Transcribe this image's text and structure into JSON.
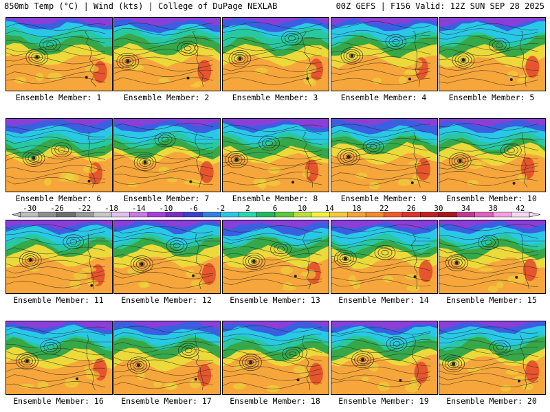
{
  "header": {
    "left": "850mb Temp (°C) | Wind (kts) | College of DuPage NEXLAB",
    "right": "00Z GEFS | F156 Valid: 12Z SUN SEP 28 2025"
  },
  "caption_prefix": "Ensemble Member: ",
  "members": [
    1,
    2,
    3,
    4,
    5,
    6,
    7,
    8,
    9,
    10,
    11,
    12,
    13,
    14,
    15,
    16,
    17,
    18,
    19,
    20
  ],
  "colorbar": {
    "ticks": [
      "-30",
      "-26",
      "-22",
      "-18",
      "-14",
      "-10",
      "-6",
      "-2",
      "2",
      "6",
      "10",
      "14",
      "18",
      "22",
      "26",
      "30",
      "34",
      "38",
      "42"
    ],
    "colors": [
      "#bdbdbd",
      "#8e8e8e",
      "#6e6e6e",
      "#9a9a9a",
      "#c7c7c7",
      "#e0c0f0",
      "#c77be0",
      "#a63fd6",
      "#7a2ec0",
      "#3b3fd0",
      "#2f7fe6",
      "#28c7e6",
      "#27d6b0",
      "#22b860",
      "#5cc83a",
      "#b8e03a",
      "#f2f23a",
      "#f7c83a",
      "#f5a336",
      "#f28a2e",
      "#ef5a2a",
      "#e2302a",
      "#c21f22",
      "#a8161c",
      "#c23a8f",
      "#e060c0",
      "#f2a0e0",
      "#f6d6f2"
    ],
    "range": [
      -30,
      42
    ]
  },
  "palette": {
    "purple": "#8a3fd8",
    "blue": "#3a5fe0",
    "cyan": "#29c8e6",
    "teal": "#28c9a0",
    "green": "#36a848",
    "yellow": "#ecd93a",
    "orange": "#f6a63a",
    "red": "#e4462c"
  }
}
